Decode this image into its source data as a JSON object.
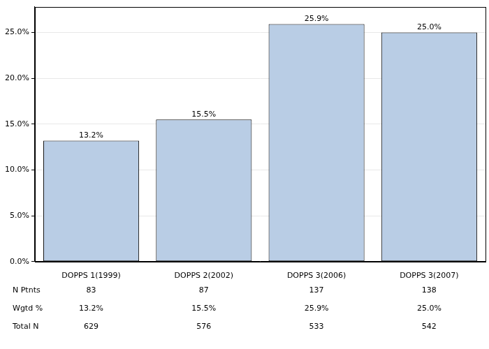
{
  "chart_data": {
    "type": "bar",
    "categories": [
      "DOPPS 1(1999)",
      "DOPPS 2(2002)",
      "DOPPS 3(2006)",
      "DOPPS 3(2007)"
    ],
    "values": [
      13.2,
      15.5,
      25.9,
      25.0
    ],
    "value_labels": [
      "13.2%",
      "15.5%",
      "25.9%",
      "25.0%"
    ],
    "data_labels": true,
    "color": "#b9cde5",
    "ylim": [
      0,
      27.8
    ],
    "yticks": [
      {
        "value": 0,
        "label": "0.0%"
      },
      {
        "value": 5,
        "label": "5.0%"
      },
      {
        "value": 10,
        "label": "10.0%"
      },
      {
        "value": 15,
        "label": "15.0%"
      },
      {
        "value": 20,
        "label": "20.0%"
      },
      {
        "value": 25,
        "label": "25.0%"
      }
    ],
    "grid": true
  },
  "table": {
    "rows": [
      [
        "N Ptnts",
        83,
        87,
        137,
        138
      ],
      [
        "Wgtd %",
        "13.2%",
        "15.5%",
        "25.9%",
        "25.0%"
      ],
      [
        "Total N",
        629,
        576,
        533,
        542
      ]
    ]
  }
}
